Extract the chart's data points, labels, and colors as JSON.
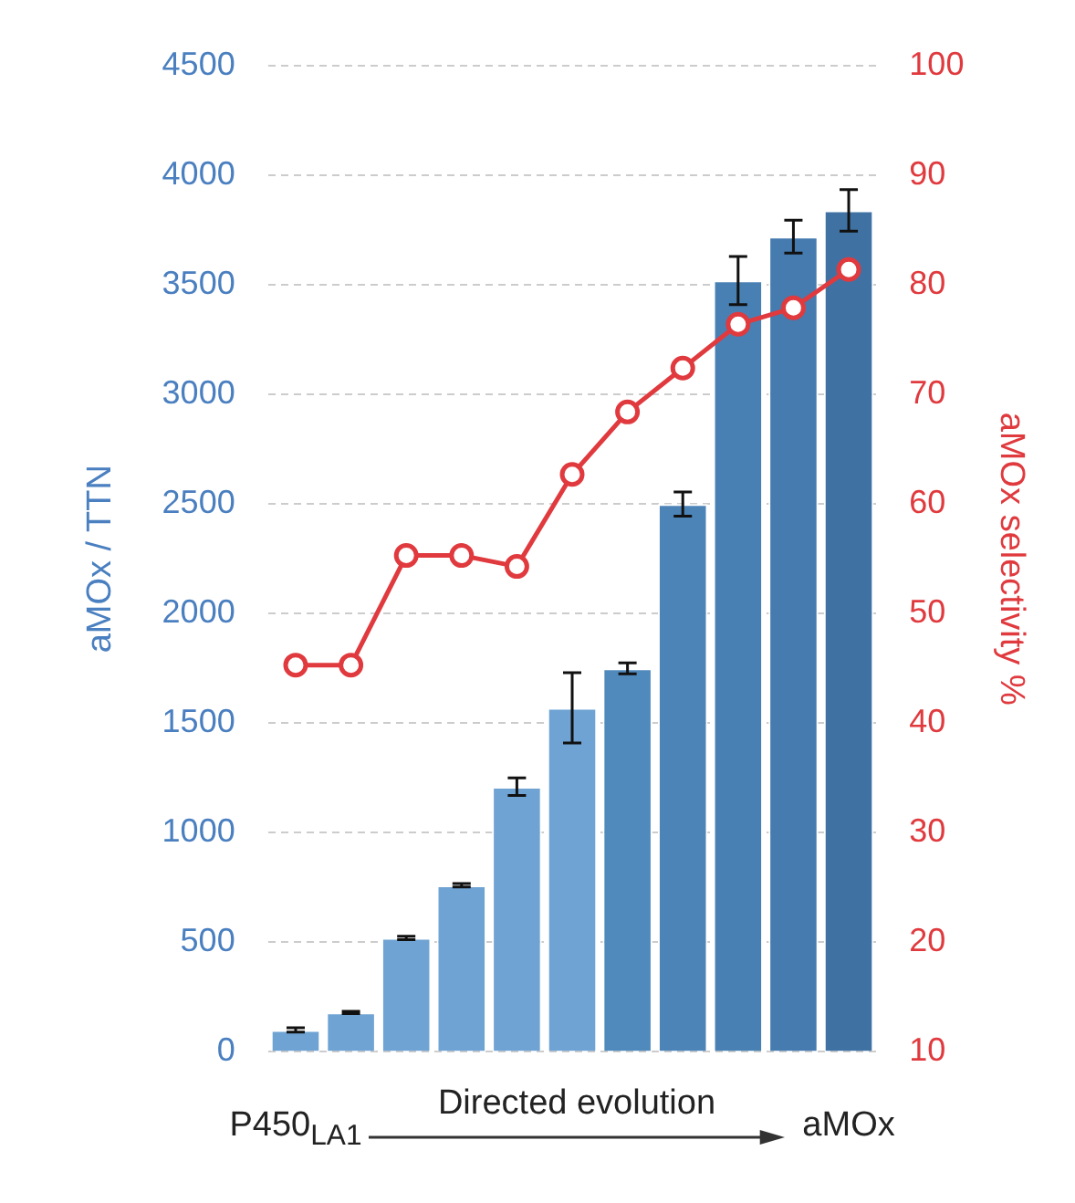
{
  "chart_data": {
    "type": "bar",
    "categories": [
      "P450$_{LA1}$",
      null,
      null,
      null,
      null,
      null,
      null,
      null,
      null,
      null,
      "aMOx"
    ],
    "ylabel": "aMOx / TTN",
    "y2label": "aMOx selectivity %",
    "series": [
      {
        "colors": [
          "#6fa3d3",
          "#6fa3d3",
          "#6fa3d3",
          "#6fa3d3",
          "#6fa3d3",
          "#6fa3d3",
          "#5089bc",
          "#4c84b7",
          "#4980b3",
          "#457bae",
          "#3f72a3"
        ],
        "values": [
          100,
          180,
          520,
          760,
          1210,
          1570,
          1750,
          2500,
          3520,
          3720,
          3840
        ],
        "errors": [
          10,
          5,
          8,
          8,
          40,
          160,
          25,
          55,
          110,
          75,
          95
        ]
      },
      {
        "type": "line",
        "axis": "y2",
        "color": "#e03a3e",
        "values": [
          45.3,
          45.3,
          55.3,
          55.3,
          54.3,
          62.7,
          68.4,
          72.4,
          76.4,
          77.9,
          81.4
        ]
      }
    ],
    "ylim": [
      0,
      4500
    ],
    "yticks": [
      0,
      500,
      1000,
      1500,
      2000,
      2500,
      3000,
      3500,
      4000,
      4500
    ],
    "y2lim": [
      10,
      100
    ],
    "y2ticks": [
      10,
      20,
      30,
      40,
      50,
      60,
      70,
      80,
      90,
      100
    ],
    "grid": "y",
    "legend": false,
    "marker": "circle",
    "line_style": "solid",
    "annotations": [
      "Directed evolution"
    ]
  }
}
